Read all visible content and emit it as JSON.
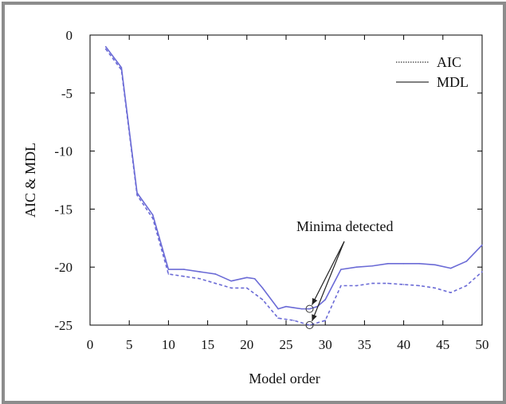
{
  "chart_data": {
    "type": "line",
    "title": "",
    "xlabel": "Model order",
    "ylabel": "AIC & MDL",
    "xlim": [
      0,
      50
    ],
    "ylim": [
      -25,
      0
    ],
    "x_ticks": [
      0,
      5,
      10,
      15,
      20,
      25,
      30,
      35,
      40,
      45,
      50
    ],
    "y_ticks": [
      0,
      -5,
      -10,
      -15,
      -20,
      -25
    ],
    "x_tick_labels": [
      "0",
      "5",
      "10",
      "15",
      "20",
      "25",
      "30",
      "35",
      "40",
      "45",
      "50"
    ],
    "y_tick_labels": [
      "0",
      "-5",
      "-10",
      "-15",
      "-20",
      "-25"
    ],
    "grid": false,
    "legend_position": "top-right",
    "series_color": "#6b6bd6",
    "series": [
      {
        "name": "AIC",
        "style": "dotted",
        "x": [
          2,
          4,
          6,
          8,
          10,
          12,
          14,
          16,
          18,
          20,
          22,
          24,
          26,
          28,
          30,
          32,
          34,
          36,
          38,
          40,
          42,
          44,
          46,
          48,
          50
        ],
        "y": [
          -1.2,
          -3.0,
          -13.8,
          -15.8,
          -20.6,
          -20.8,
          -21.0,
          -21.4,
          -21.8,
          -21.8,
          -22.8,
          -24.4,
          -24.6,
          -25.0,
          -24.6,
          -21.6,
          -21.6,
          -21.4,
          -21.4,
          -21.5,
          -21.6,
          -21.8,
          -22.2,
          -21.6,
          -20.4
        ]
      },
      {
        "name": "MDL",
        "style": "solid",
        "x": [
          2,
          4,
          6,
          8,
          10,
          12,
          14,
          16,
          18,
          20,
          21,
          22,
          24,
          25,
          26,
          27,
          28,
          29,
          30,
          32,
          34,
          36,
          38,
          40,
          42,
          44,
          46,
          48,
          50
        ],
        "y": [
          -1.0,
          -2.8,
          -13.6,
          -15.5,
          -20.2,
          -20.2,
          -20.4,
          -20.6,
          -21.2,
          -20.9,
          -21.0,
          -21.8,
          -23.6,
          -23.4,
          -23.5,
          -23.6,
          -23.6,
          -23.4,
          -22.8,
          -20.2,
          -20.0,
          -19.9,
          -19.7,
          -19.7,
          -19.7,
          -19.8,
          -20.1,
          -19.5,
          -18.1
        ]
      }
    ],
    "minima": [
      {
        "series": "MDL",
        "x": 28,
        "y": -23.6
      },
      {
        "series": "AIC",
        "x": 28,
        "y": -25.0
      }
    ],
    "annotations": [
      {
        "text": "Minima detected"
      }
    ]
  }
}
